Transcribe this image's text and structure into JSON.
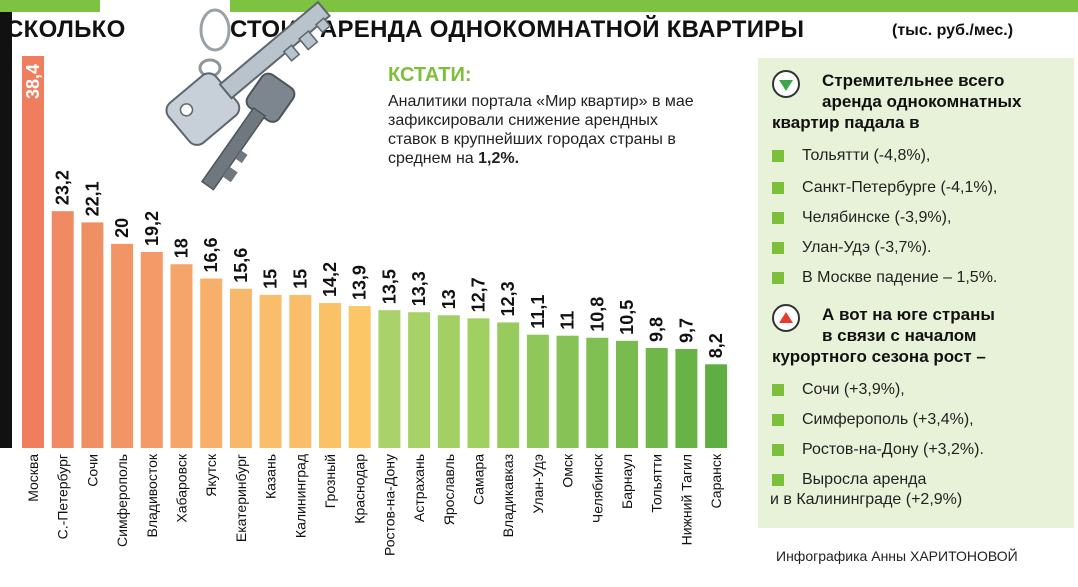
{
  "header": {
    "title_left": "СКОЛЬКО",
    "title_right": "СТОИТ АРЕНДА ОДНОКОМНАТНОЙ КВАРТИРЫ",
    "units": "(тыс. руб./мес.)"
  },
  "chart_data": {
    "type": "bar",
    "title": "СКОЛЬКО СТОИТ АРЕНДА ОДНОКОМНАТНОЙ КВАРТИРЫ",
    "ylabel": "(тыс. руб./мес.)",
    "ylim": [
      0,
      38.4
    ],
    "categories": [
      "Москва",
      "С.-Петербург",
      "Сочи",
      "Симферополь",
      "Владивосток",
      "Хабаровск",
      "Якутск",
      "Екатеринбург",
      "Казань",
      "Калининград",
      "Грозный",
      "Краснодар",
      "Ростов-на-Дону",
      "Астрахань",
      "Ярославль",
      "Самара",
      "Владикавказ",
      "Улан-Удэ",
      "Омск",
      "Челябинск",
      "Барнаул",
      "Тольятти",
      "Нижний Тагил",
      "Саранск"
    ],
    "values": [
      38.4,
      23.2,
      22.1,
      20,
      19.2,
      18,
      16.6,
      15.6,
      15,
      15,
      14.2,
      13.9,
      13.5,
      13.3,
      13,
      12.7,
      12.3,
      11.1,
      11,
      10.8,
      10.5,
      9.8,
      9.7,
      8.2
    ],
    "value_labels": [
      "38,4",
      "23,2",
      "22,1",
      "20",
      "19,2",
      "18",
      "16,6",
      "15,6",
      "15",
      "15",
      "14,2",
      "13,9",
      "13,5",
      "13,3",
      "13",
      "12,7",
      "12,3",
      "11,1",
      "11",
      "10,8",
      "10,5",
      "9,8",
      "9,7",
      "8,2"
    ],
    "colors": [
      "#f07e5e",
      "#f08a64",
      "#f18f64",
      "#f29566",
      "#f39a68",
      "#f5a46a",
      "#f7b06c",
      "#f8b86c",
      "#f9bd6b",
      "#fabd69",
      "#fbc167",
      "#fcc566",
      "#a9d36a",
      "#a6d267",
      "#a3d064",
      "#a0cf62",
      "#98cb5e",
      "#90c75a",
      "#86c256",
      "#80bf52",
      "#78bb4e",
      "#70b74a",
      "#68b346",
      "#5eae42"
    ]
  },
  "kstati": {
    "heading": "КСТАТИ:",
    "text": "Аналитики портала «Мир квартир» в мае зафиксировали снижение арендных ставок в крупнейших городах страны в среднем на",
    "value": "1,2%."
  },
  "side": {
    "down_head_line1": "Стремительнее всего",
    "down_head_line2": "аренда однокомнатных",
    "down_head_line3": "квартир падала в",
    "down_items": [
      "Тольятти (-4,8%),",
      "Санкт-Петербурге (-4,1%),",
      "Челябинске (-3,9%),",
      "Улан-Удэ (-3,7%).",
      "В Москве падение – 1,5%."
    ],
    "up_head_line1": "А вот на юге страны",
    "up_head_line2": "в связи с началом",
    "up_head_line3": "курортного сезона рост –",
    "up_items": [
      "Сочи (+3,9%),",
      "Симферополь (+3,4%),",
      "Ростов-на-Дону (+3,2%)."
    ],
    "up_last_line1": "Выросла аренда",
    "up_last_line2": "и в Калининграде (+2,9%)"
  },
  "credit": {
    "prefix": "Инфографика",
    "author": "Анны ХАРИТОНОВОЙ"
  },
  "icons": {
    "down": "green-down-triangle-icon",
    "up": "red-up-triangle-icon",
    "keys": "keys-illustration"
  }
}
